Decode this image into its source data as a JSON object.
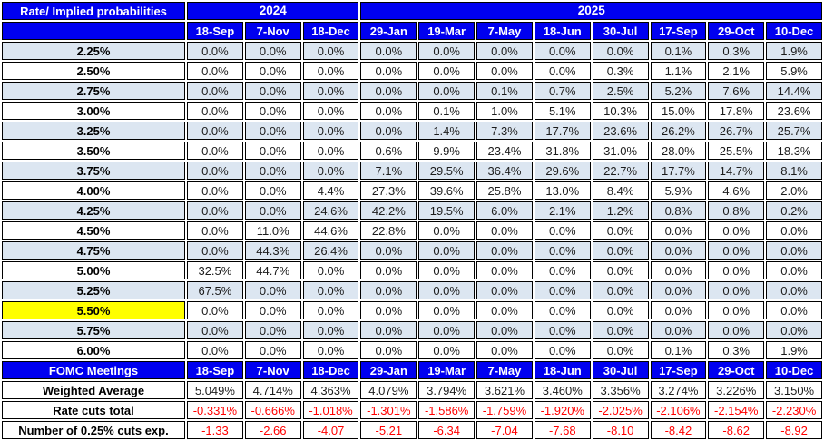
{
  "colors": {
    "header_blue": "#0000f0",
    "band_blue": "#dce6f1",
    "highlight_yellow": "#ffff00",
    "negative_red": "#ff0000",
    "border_black": "#000000"
  },
  "chart_data": {
    "type": "table",
    "title": "Rate/ Implied probabilities",
    "year_groups": [
      {
        "label": "2024",
        "colspan": 3
      },
      {
        "label": "2025",
        "colspan": 8
      }
    ],
    "columns": [
      "18-Sep",
      "7-Nov",
      "18-Dec",
      "29-Jan",
      "19-Mar",
      "7-May",
      "18-Jun",
      "30-Jul",
      "17-Sep",
      "29-Oct",
      "10-Dec"
    ],
    "rate_rows": [
      {
        "rate": "2.25%",
        "highlight": false,
        "values": [
          "0.0%",
          "0.0%",
          "0.0%",
          "0.0%",
          "0.0%",
          "0.0%",
          "0.0%",
          "0.0%",
          "0.1%",
          "0.3%",
          "1.9%"
        ]
      },
      {
        "rate": "2.50%",
        "highlight": false,
        "values": [
          "0.0%",
          "0.0%",
          "0.0%",
          "0.0%",
          "0.0%",
          "0.0%",
          "0.0%",
          "0.3%",
          "1.1%",
          "2.1%",
          "5.9%"
        ]
      },
      {
        "rate": "2.75%",
        "highlight": false,
        "values": [
          "0.0%",
          "0.0%",
          "0.0%",
          "0.0%",
          "0.0%",
          "0.1%",
          "0.7%",
          "2.5%",
          "5.2%",
          "7.6%",
          "14.4%"
        ]
      },
      {
        "rate": "3.00%",
        "highlight": false,
        "values": [
          "0.0%",
          "0.0%",
          "0.0%",
          "0.0%",
          "0.1%",
          "1.0%",
          "5.1%",
          "10.3%",
          "15.0%",
          "17.8%",
          "23.6%"
        ]
      },
      {
        "rate": "3.25%",
        "highlight": false,
        "values": [
          "0.0%",
          "0.0%",
          "0.0%",
          "0.0%",
          "1.4%",
          "7.3%",
          "17.7%",
          "23.6%",
          "26.2%",
          "26.7%",
          "25.7%"
        ]
      },
      {
        "rate": "3.50%",
        "highlight": false,
        "values": [
          "0.0%",
          "0.0%",
          "0.0%",
          "0.6%",
          "9.9%",
          "23.4%",
          "31.8%",
          "31.0%",
          "28.0%",
          "25.5%",
          "18.3%"
        ]
      },
      {
        "rate": "3.75%",
        "highlight": false,
        "values": [
          "0.0%",
          "0.0%",
          "0.0%",
          "7.1%",
          "29.5%",
          "36.4%",
          "29.6%",
          "22.7%",
          "17.7%",
          "14.7%",
          "8.1%"
        ]
      },
      {
        "rate": "4.00%",
        "highlight": false,
        "values": [
          "0.0%",
          "0.0%",
          "4.4%",
          "27.3%",
          "39.6%",
          "25.8%",
          "13.0%",
          "8.4%",
          "5.9%",
          "4.6%",
          "2.0%"
        ]
      },
      {
        "rate": "4.25%",
        "highlight": false,
        "values": [
          "0.0%",
          "0.0%",
          "24.6%",
          "42.2%",
          "19.5%",
          "6.0%",
          "2.1%",
          "1.2%",
          "0.8%",
          "0.8%",
          "0.2%"
        ]
      },
      {
        "rate": "4.50%",
        "highlight": false,
        "values": [
          "0.0%",
          "11.0%",
          "44.6%",
          "22.8%",
          "0.0%",
          "0.0%",
          "0.0%",
          "0.0%",
          "0.0%",
          "0.0%",
          "0.0%"
        ]
      },
      {
        "rate": "4.75%",
        "highlight": false,
        "values": [
          "0.0%",
          "44.3%",
          "26.4%",
          "0.0%",
          "0.0%",
          "0.0%",
          "0.0%",
          "0.0%",
          "0.0%",
          "0.0%",
          "0.0%"
        ]
      },
      {
        "rate": "5.00%",
        "highlight": false,
        "values": [
          "32.5%",
          "44.7%",
          "0.0%",
          "0.0%",
          "0.0%",
          "0.0%",
          "0.0%",
          "0.0%",
          "0.0%",
          "0.0%",
          "0.0%"
        ]
      },
      {
        "rate": "5.25%",
        "highlight": false,
        "values": [
          "67.5%",
          "0.0%",
          "0.0%",
          "0.0%",
          "0.0%",
          "0.0%",
          "0.0%",
          "0.0%",
          "0.0%",
          "0.0%",
          "0.0%"
        ]
      },
      {
        "rate": "5.50%",
        "highlight": true,
        "values": [
          "0.0%",
          "0.0%",
          "0.0%",
          "0.0%",
          "0.0%",
          "0.0%",
          "0.0%",
          "0.0%",
          "0.0%",
          "0.0%",
          "0.0%"
        ]
      },
      {
        "rate": "5.75%",
        "highlight": false,
        "values": [
          "0.0%",
          "0.0%",
          "0.0%",
          "0.0%",
          "0.0%",
          "0.0%",
          "0.0%",
          "0.0%",
          "0.0%",
          "0.0%",
          "0.0%"
        ]
      },
      {
        "rate": "6.00%",
        "highlight": false,
        "values": [
          "0.0%",
          "0.0%",
          "0.0%",
          "0.0%",
          "0.0%",
          "0.0%",
          "0.0%",
          "0.0%",
          "0.1%",
          "0.3%",
          "1.9%"
        ]
      }
    ],
    "footer": {
      "meetings_label": "FOMC Meetings",
      "rows": [
        {
          "label": "Weighted Average",
          "style": "black",
          "values": [
            "5.049%",
            "4.714%",
            "4.363%",
            "4.079%",
            "3.794%",
            "3.621%",
            "3.460%",
            "3.356%",
            "3.274%",
            "3.226%",
            "3.150%"
          ]
        },
        {
          "label": "Rate cuts total",
          "style": "red",
          "values": [
            "-0.331%",
            "-0.666%",
            "-1.018%",
            "-1.301%",
            "-1.586%",
            "-1.759%",
            "-1.920%",
            "-2.025%",
            "-2.106%",
            "-2.154%",
            "-2.230%"
          ]
        },
        {
          "label": "Number of 0.25% cuts exp.",
          "style": "red",
          "values": [
            "-1.33",
            "-2.66",
            "-4.07",
            "-5.21",
            "-6.34",
            "-7.04",
            "-7.68",
            "-8.10",
            "-8.42",
            "-8.62",
            "-8.92"
          ]
        }
      ]
    }
  }
}
